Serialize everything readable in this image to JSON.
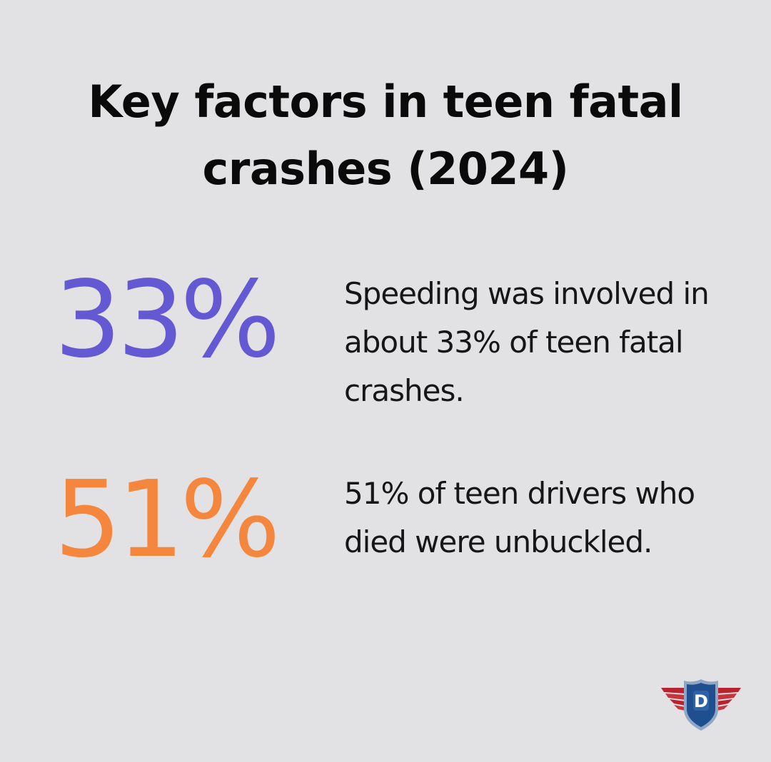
{
  "title": "Key factors in teen fatal crashes (2024)",
  "stats": [
    {
      "value": "33%",
      "description": "Speeding was involved in about 33% of teen fatal crashes.",
      "color": "#6459d2"
    },
    {
      "value": "51%",
      "description": "51% of teen drivers who died were unbuckled.",
      "color": "#f4873d"
    }
  ],
  "logo": {
    "letter": "D",
    "icon": "winged-shield-logo-icon",
    "colors": {
      "shield": "#1f4f8e",
      "wings": "#b8232f",
      "letter": "#ffffff"
    }
  },
  "colors": {
    "background": "#e2e2e4",
    "text": "#0c0c0c"
  }
}
